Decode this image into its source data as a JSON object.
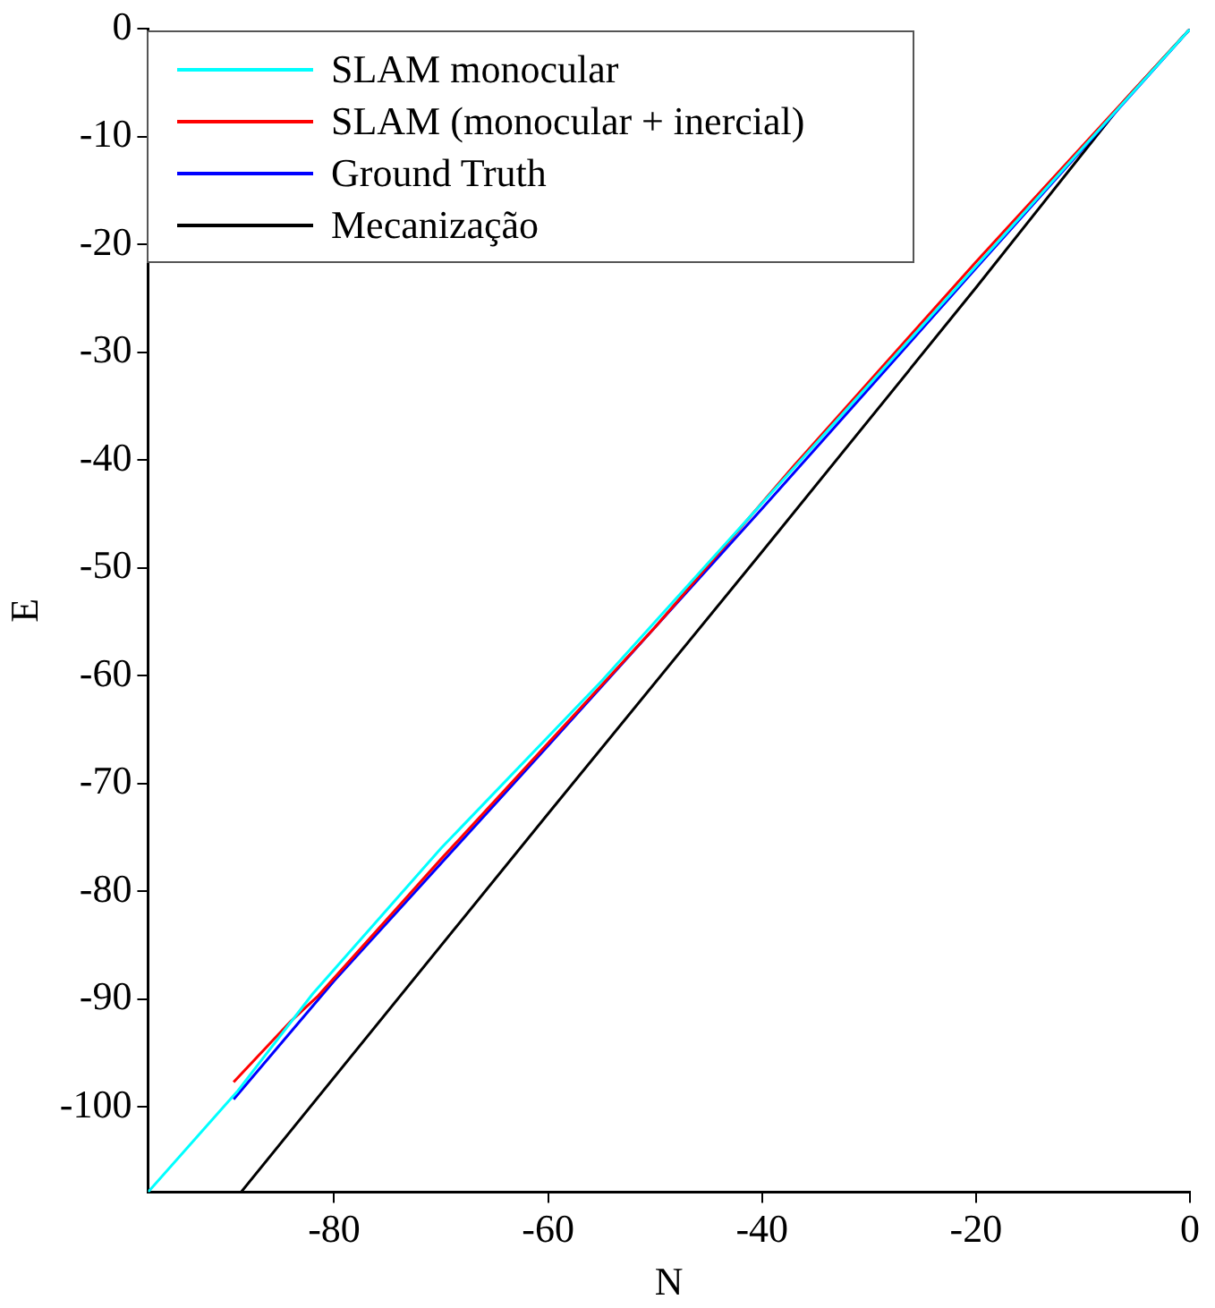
{
  "chart_data": {
    "type": "line",
    "xlabel": "N",
    "ylabel": "E",
    "xlim": [
      -97.4,
      0
    ],
    "ylim": [
      -107.9,
      0
    ],
    "xticks": [
      -80,
      -60,
      -40,
      -20,
      0
    ],
    "yticks": [
      0,
      -10,
      -20,
      -30,
      -40,
      -50,
      -60,
      -70,
      -80,
      -90,
      -100
    ],
    "grid": false,
    "legend": "top left",
    "marker": "none",
    "line_style": "solid",
    "series": [
      {
        "name": "SLAM monocular",
        "color": "#00ffff",
        "x": [
          0,
          -20,
          -40,
          -55,
          -70,
          -82,
          -89,
          -97.4
        ],
        "values": [
          0,
          -22,
          -44,
          -60.5,
          -76,
          -89.5,
          -98.5,
          -107.9
        ]
      },
      {
        "name": "SLAM (monocular + inercial)",
        "color": "#ff0000",
        "x": [
          0,
          -20,
          -37,
          -50,
          -70,
          -81.5,
          -84,
          -89.4
        ],
        "values": [
          0,
          -21.6,
          -40.5,
          -55.5,
          -77,
          -89.7,
          -92,
          -97.7
        ]
      },
      {
        "name": "Ground Truth",
        "color": "#0000ff",
        "x": [
          0,
          -20,
          -40,
          -60,
          -80,
          -89.4
        ],
        "values": [
          0,
          -22.2,
          -44.5,
          -66.5,
          -88.3,
          -99.3
        ]
      },
      {
        "name": "Mecanização",
        "color": "#000000",
        "x": [
          0,
          -6,
          -20,
          -40,
          -60,
          -88.7
        ],
        "values": [
          0,
          -6.5,
          -24,
          -48.5,
          -72.8,
          -107.9
        ]
      }
    ]
  }
}
